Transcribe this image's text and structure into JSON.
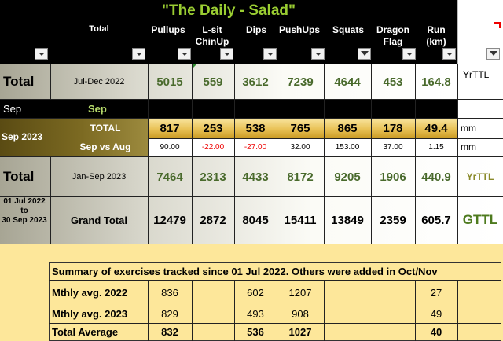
{
  "header": {
    "title": "\"The Daily - Salad\"",
    "total_label": "Total",
    "columns": [
      "Pullups",
      "L-sit ChinUp",
      "Dips",
      "PushUps",
      "Squats",
      "Dragon Flag",
      "Run (km)"
    ]
  },
  "row_jul_dec": {
    "label": "Total",
    "period": "Jul-Dec 2022",
    "values": [
      "5015",
      "559",
      "3612",
      "7239",
      "4644",
      "453",
      "164.8"
    ],
    "tag": "YrTTL"
  },
  "month_row": {
    "label1": "Sep",
    "label2": "Sep"
  },
  "row_sep_total": {
    "label": "Sep 2023",
    "sub": "TOTAL",
    "values": [
      "817",
      "253",
      "538",
      "765",
      "865",
      "178",
      "49.4"
    ],
    "unit": "mm"
  },
  "row_sep_vs_aug": {
    "sub": "Sep vs Aug",
    "values": [
      "90.00",
      "-22.00",
      "-27.00",
      "32.00",
      "153.00",
      "37.00",
      "1.15"
    ],
    "unit": "mm"
  },
  "row_jan_sep": {
    "label": "Total",
    "period": "Jan-Sep 2023",
    "values": [
      "7464",
      "2313",
      "4433",
      "8172",
      "9205",
      "1906",
      "440.9"
    ],
    "tag": "YrTTL"
  },
  "row_grand": {
    "date_from": "01 Jul 2022",
    "date_to_word": "to",
    "date_to": "30 Sep 2023",
    "label": "Grand Total",
    "values": [
      "12479",
      "2872",
      "8045",
      "15411",
      "13849",
      "2359",
      "605.7"
    ],
    "tag": "GTTL"
  },
  "summary": {
    "heading": "Summary of exercises tracked since 01 Jul 2022. Others were added in Oct/Nov",
    "rows": [
      {
        "label": "Mthly avg. 2022",
        "values": [
          "836",
          "",
          "602",
          "1207",
          "",
          "",
          "27"
        ]
      },
      {
        "label": "Mthly avg. 2023",
        "values": [
          "829",
          "",
          "493",
          "908",
          "",
          "",
          "49"
        ]
      },
      {
        "label": "Total Average",
        "values": [
          "832",
          "",
          "536",
          "1027",
          "",
          "",
          "40"
        ]
      }
    ]
  },
  "colors": {
    "green_value": "#496a2c",
    "title_green": "#9acd32",
    "negative": "#e00000",
    "background": "#fde79a"
  }
}
